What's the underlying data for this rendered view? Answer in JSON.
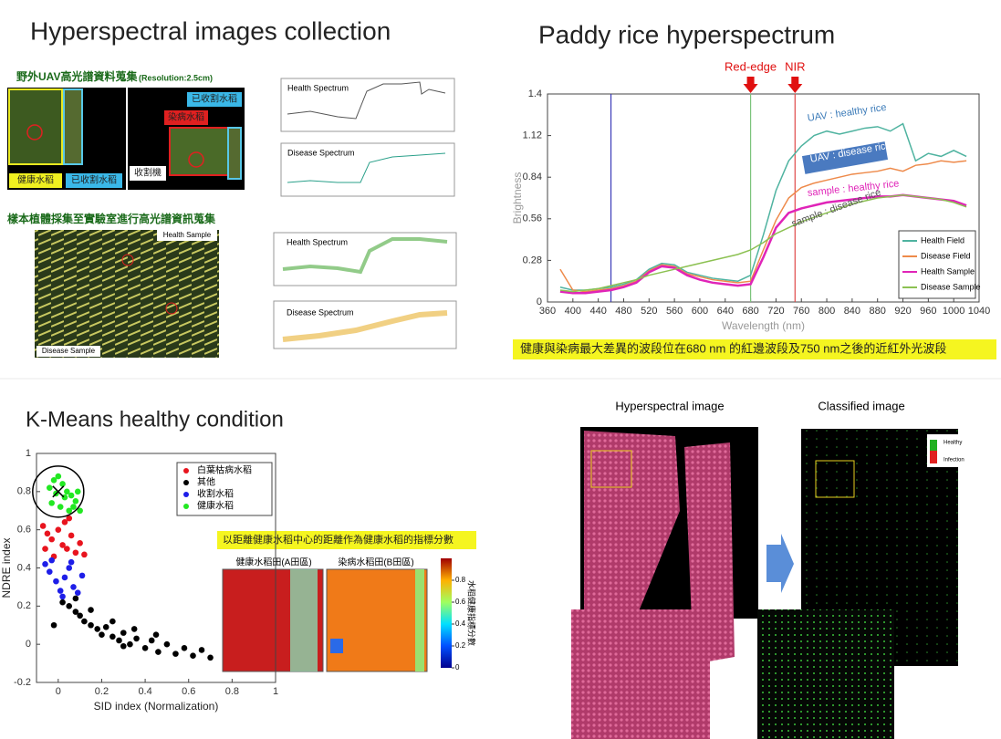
{
  "panels": {
    "collection": {
      "title": "Hyperspectral images collection",
      "uav_heading": "野外UAV高光譜資料蒐集",
      "resolution": "(Resolution:2.5cm)",
      "labels": [
        "健康水稻",
        "已收割水稻",
        "已收割水稻",
        "染病水稻",
        "收割機"
      ],
      "lab_heading": "樣本植體採集至實驗室進行高光譜資訊蒐集",
      "sample_labels": [
        "Health Sample",
        "Disease Sample"
      ],
      "plot_titles": [
        "Health Spectrum",
        "Disease Spectrum",
        "Health Spectrum",
        "Disease Spectrum"
      ]
    },
    "spectrum": {
      "title": "Paddy rice hyperspectrum",
      "caption": "健康與染病最大差異的波段位在680 nm 的紅邊波段及750 nm之後的近紅外光波段"
    },
    "kmeans": {
      "title": "K-Means healthy condition",
      "note": "以距離健康水稻中心的距離作為健康水稻的指標分數",
      "map_titles": [
        "健康水稻田(A田區)",
        "染病水稻田(B田區)"
      ],
      "colorbar": {
        "label": "水稻健康指標分數",
        "ticks": [
          0,
          0.2,
          0.4,
          0.6,
          0.8
        ]
      }
    },
    "classification": {
      "titles": [
        "Hyperspectral image",
        "Classified image"
      ],
      "legend": [
        "Healthy",
        "Infection"
      ]
    }
  },
  "chart_data": [
    {
      "type": "line",
      "xlabel": "Wavelength (nm)",
      "ylabel": "Brightness",
      "xlim": [
        360,
        1040
      ],
      "ylim": [
        0,
        1.4
      ],
      "xticks": [
        360,
        400,
        440,
        480,
        520,
        560,
        600,
        640,
        680,
        720,
        760,
        800,
        840,
        880,
        920,
        960,
        1000,
        1040
      ],
      "yticks": [
        0,
        0.28,
        0.56,
        0.84,
        1.12,
        1.4
      ],
      "legend": "lower right",
      "annotations": [
        {
          "text": "Red-edge",
          "x": 680
        },
        {
          "text": "NIR",
          "x": 750
        }
      ],
      "vlines": [
        {
          "x": 460,
          "color": "#3a3ab8"
        },
        {
          "x": 680,
          "color": "#7cc47c"
        },
        {
          "x": 750,
          "color": "#e04848"
        }
      ],
      "series_labels": [
        "UAV : healthy rice",
        "UAV : disease rice",
        "sample : healthy rice",
        "sample : disease rice"
      ],
      "x": [
        380,
        400,
        420,
        440,
        460,
        480,
        500,
        520,
        540,
        560,
        580,
        600,
        620,
        640,
        660,
        680,
        700,
        720,
        740,
        760,
        780,
        800,
        820,
        840,
        860,
        880,
        900,
        920,
        940,
        960,
        980,
        1000,
        1020
      ],
      "series": [
        {
          "name": "Health Field",
          "color": "#4fb3a0",
          "values": [
            0.1,
            0.08,
            0.08,
            0.09,
            0.1,
            0.12,
            0.15,
            0.22,
            0.26,
            0.25,
            0.2,
            0.18,
            0.16,
            0.15,
            0.14,
            0.18,
            0.45,
            0.75,
            0.95,
            1.05,
            1.12,
            1.15,
            1.13,
            1.15,
            1.17,
            1.18,
            1.15,
            1.2,
            0.95,
            1.0,
            0.98,
            1.02,
            0.98
          ]
        },
        {
          "name": "Disease Field",
          "color": "#ee8a4a",
          "values": [
            0.22,
            0.08,
            0.07,
            0.08,
            0.09,
            0.11,
            0.14,
            0.21,
            0.25,
            0.24,
            0.19,
            0.17,
            0.15,
            0.14,
            0.13,
            0.14,
            0.35,
            0.55,
            0.7,
            0.77,
            0.8,
            0.82,
            0.84,
            0.86,
            0.87,
            0.88,
            0.9,
            0.88,
            0.92,
            0.93,
            0.95,
            0.94,
            0.95
          ]
        },
        {
          "name": "Health Sample",
          "color": "#e024b8",
          "values": [
            0.07,
            0.06,
            0.06,
            0.07,
            0.08,
            0.1,
            0.13,
            0.2,
            0.24,
            0.23,
            0.18,
            0.15,
            0.13,
            0.12,
            0.11,
            0.12,
            0.3,
            0.5,
            0.6,
            0.63,
            0.65,
            0.67,
            0.68,
            0.69,
            0.7,
            0.71,
            0.71,
            0.72,
            0.71,
            0.7,
            0.69,
            0.68,
            0.65
          ]
        },
        {
          "name": "Disease Sample",
          "color": "#8cc152",
          "values": [
            0.08,
            0.07,
            0.08,
            0.09,
            0.11,
            0.13,
            0.15,
            0.18,
            0.2,
            0.22,
            0.24,
            0.26,
            0.28,
            0.3,
            0.32,
            0.35,
            0.4,
            0.46,
            0.5,
            0.54,
            0.57,
            0.6,
            0.63,
            0.66,
            0.68,
            0.7,
            0.71,
            0.72,
            0.71,
            0.7,
            0.69,
            0.67,
            0.64
          ]
        }
      ]
    },
    {
      "type": "scatter",
      "xlabel": "SID index (Normalization)",
      "ylabel": "NDRE index",
      "xlim": [
        -0.1,
        1
      ],
      "ylim": [
        -0.2,
        1
      ],
      "xticks": [
        0,
        0.2,
        0.4,
        0.6,
        0.8,
        1
      ],
      "yticks": [
        -0.2,
        0,
        0.2,
        0.4,
        0.6,
        0.8,
        1
      ],
      "legend": "upper right",
      "series": [
        {
          "name": "白葉枯病水稻",
          "color": "#e8141e",
          "x": [
            -0.07,
            -0.05,
            -0.03,
            0,
            0.02,
            0.04,
            0.06,
            0.08,
            -0.06,
            -0.02,
            0.03,
            0.1,
            0.12,
            0.05
          ],
          "values": [
            0.62,
            0.58,
            0.55,
            0.6,
            0.52,
            0.5,
            0.57,
            0.48,
            0.5,
            0.46,
            0.64,
            0.53,
            0.47,
            0.66
          ]
        },
        {
          "name": "其他",
          "color": "#000000",
          "x": [
            0.02,
            0.05,
            0.08,
            0.1,
            0.12,
            0.15,
            0.18,
            0.2,
            0.22,
            0.25,
            0.28,
            0.3,
            0.33,
            0.36,
            0.4,
            0.43,
            0.46,
            0.5,
            0.54,
            0.58,
            0.62,
            0.66,
            0.7,
            0.15,
            0.25,
            0.35,
            0.45,
            -0.02,
            0.08,
            0.3
          ],
          "values": [
            0.22,
            0.2,
            0.17,
            0.15,
            0.12,
            0.1,
            0.08,
            0.05,
            0.09,
            0.04,
            0.02,
            0.06,
            0.0,
            0.03,
            -0.02,
            0.02,
            -0.04,
            0.0,
            -0.05,
            -0.02,
            -0.06,
            -0.03,
            -0.07,
            0.18,
            0.12,
            0.08,
            0.05,
            0.1,
            0.24,
            -0.01
          ]
        },
        {
          "name": "收割水稻",
          "color": "#1e1ee8",
          "x": [
            -0.06,
            -0.04,
            -0.01,
            0.01,
            0.03,
            0.05,
            0.07,
            0.09,
            0.11,
            -0.03,
            0.02,
            0.06
          ],
          "values": [
            0.42,
            0.38,
            0.33,
            0.28,
            0.35,
            0.4,
            0.3,
            0.27,
            0.36,
            0.44,
            0.25,
            0.43
          ]
        },
        {
          "name": "健康水稻",
          "color": "#22e822",
          "x": [
            -0.04,
            -0.02,
            0,
            0.02,
            0.04,
            0.06,
            0.08,
            -0.03,
            0.01,
            0.05,
            0.03,
            -0.01,
            0.07,
            0.1,
            0.09
          ],
          "values": [
            0.82,
            0.86,
            0.88,
            0.84,
            0.8,
            0.78,
            0.75,
            0.74,
            0.72,
            0.7,
            0.77,
            0.79,
            0.72,
            0.7,
            0.8
          ]
        }
      ]
    }
  ]
}
